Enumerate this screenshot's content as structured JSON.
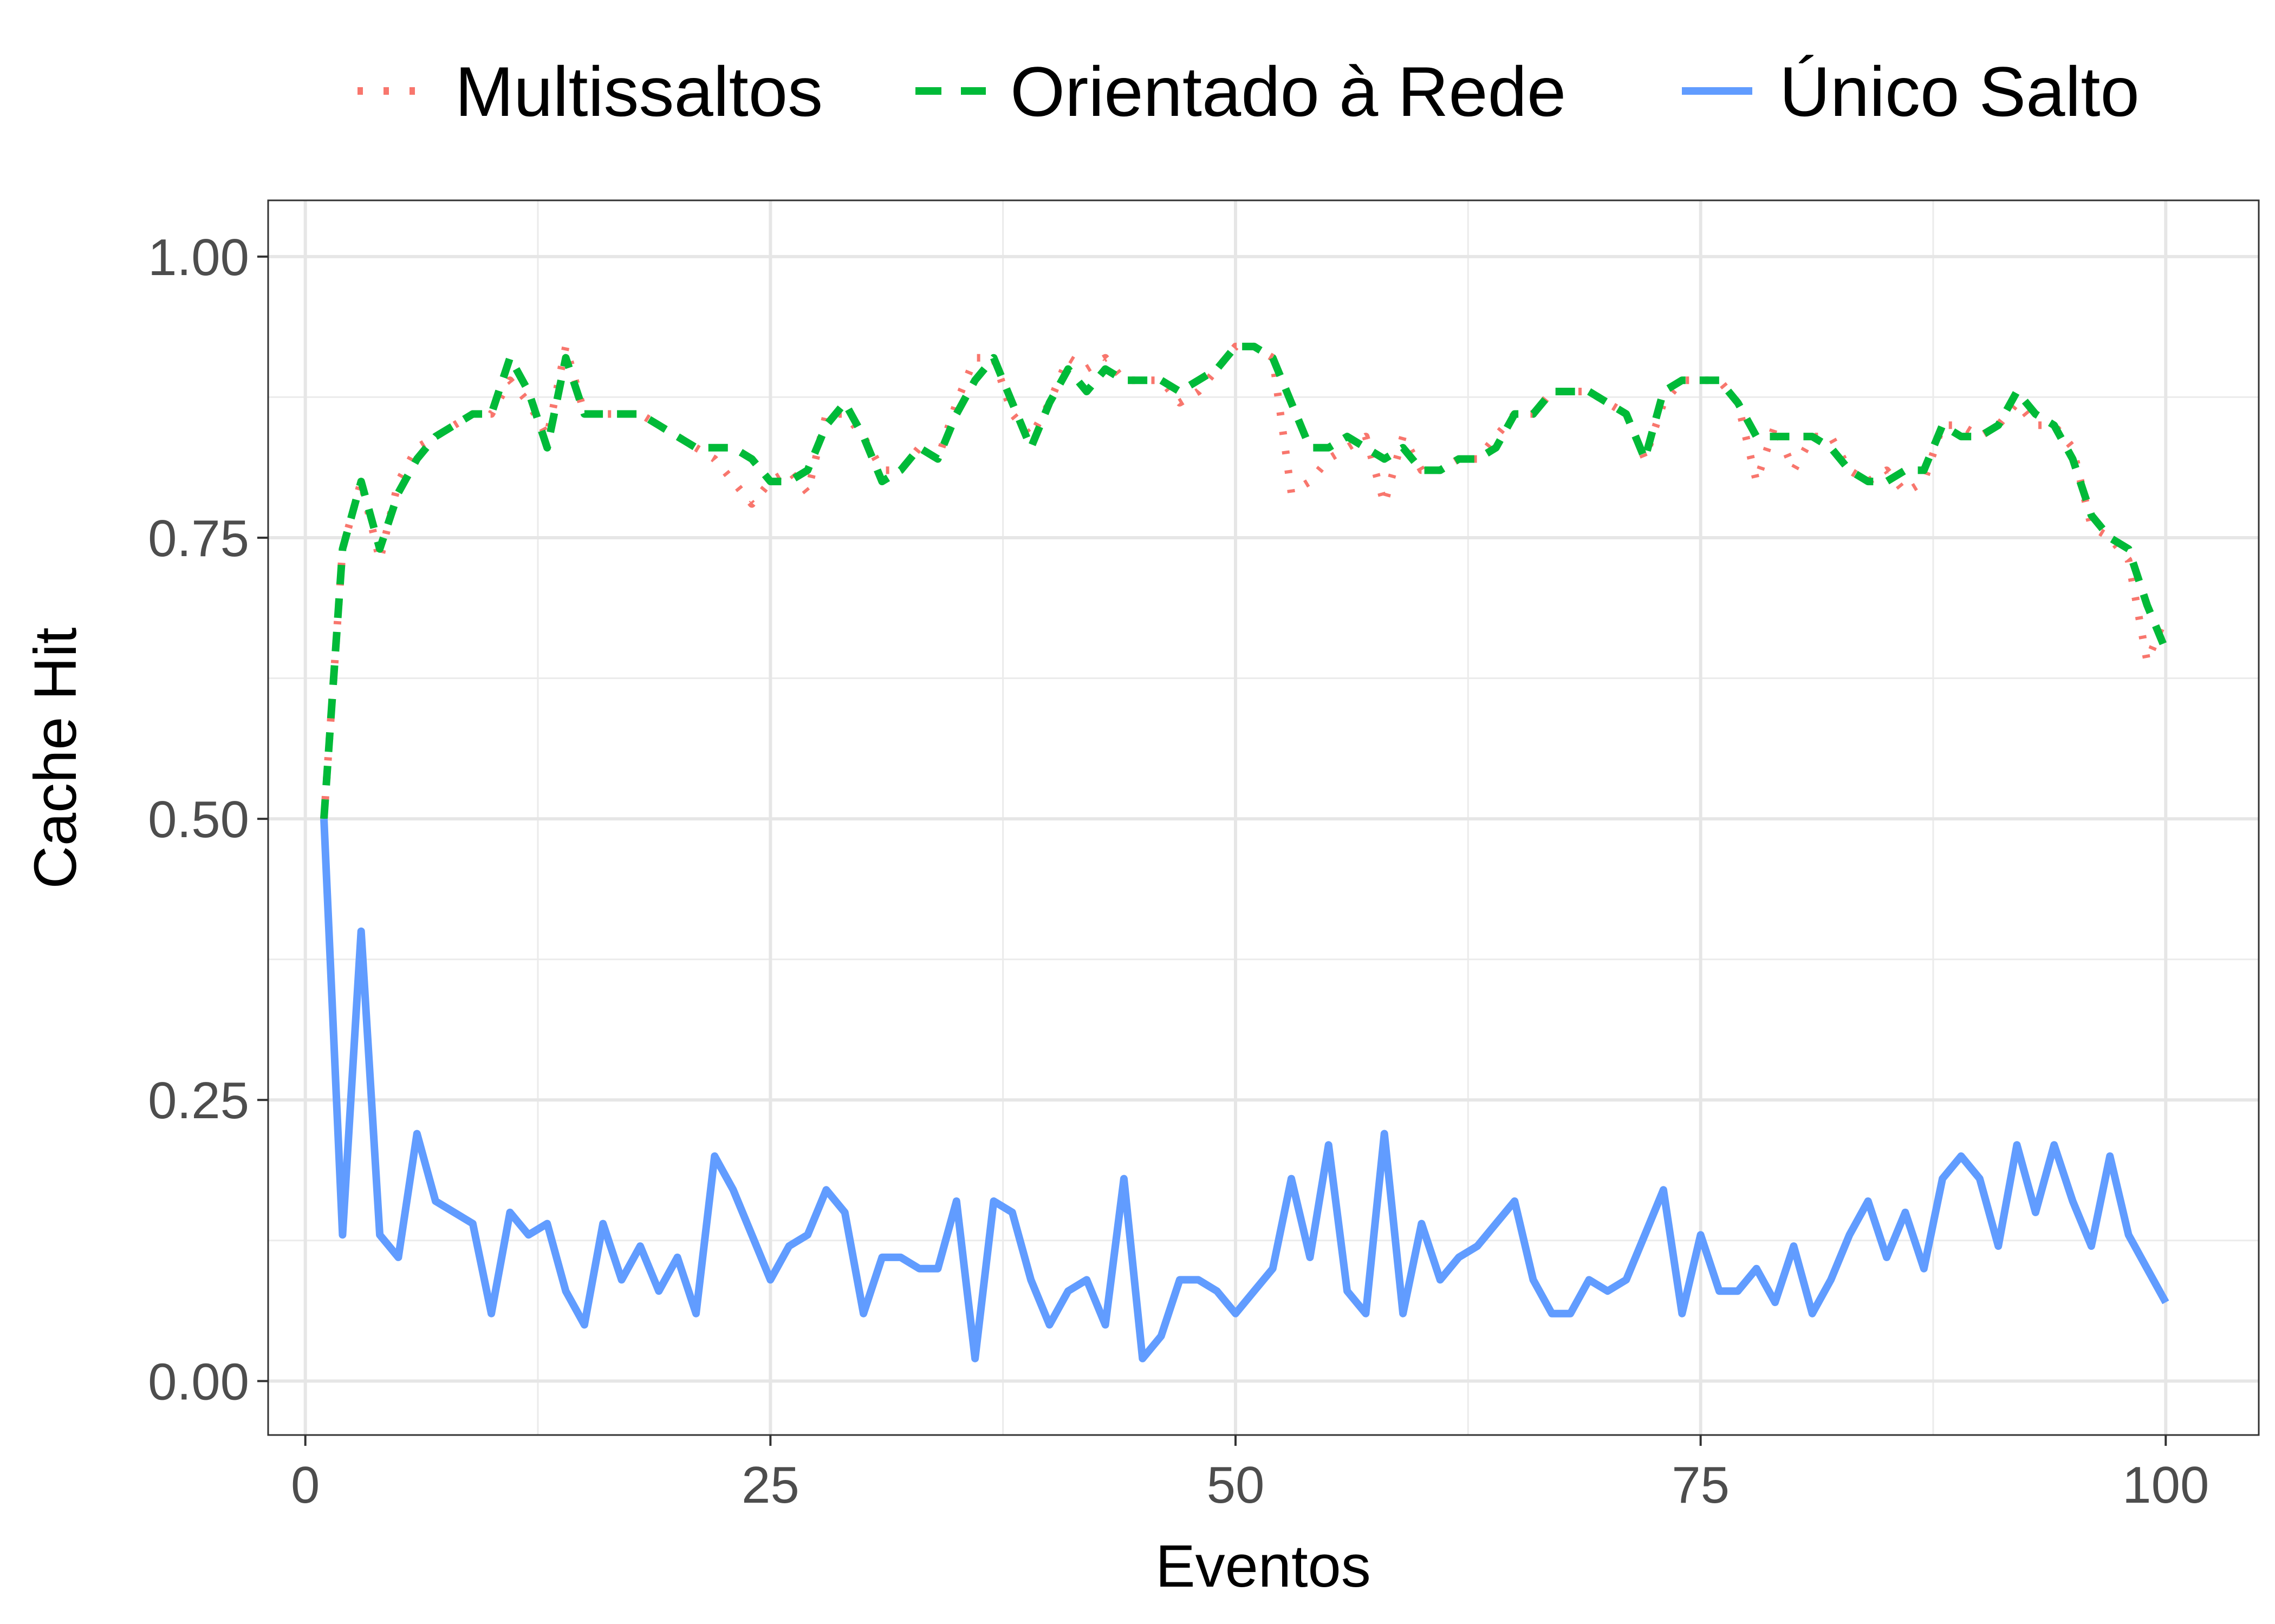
{
  "chart_data": {
    "type": "line",
    "title": "",
    "xlabel": "Eventos",
    "ylabel": "Cache Hit",
    "xlim": [
      -2,
      105
    ],
    "ylim": [
      -0.048,
      1.05
    ],
    "x_ticks": [
      0,
      25,
      50,
      75,
      100
    ],
    "x_tick_labels": [
      "0",
      "25",
      "50",
      "75",
      "100"
    ],
    "x_minor_ticks": [
      12.5,
      37.5,
      62.5,
      87.5
    ],
    "y_ticks": [
      0,
      0.25,
      0.5,
      0.75,
      1
    ],
    "y_tick_labels": [
      "0.00",
      "0.25",
      "0.50",
      "0.75",
      "1.00"
    ],
    "y_minor_ticks": [
      0.125,
      0.375,
      0.625,
      0.875
    ],
    "grid": true,
    "legend_position": "top",
    "x": [
      1,
      2,
      3,
      4,
      5,
      6,
      7,
      8,
      9,
      10,
      11,
      12,
      13,
      14,
      15,
      16,
      17,
      18,
      19,
      20,
      21,
      22,
      23,
      24,
      25,
      26,
      27,
      28,
      29,
      30,
      31,
      32,
      33,
      34,
      35,
      36,
      37,
      38,
      39,
      40,
      41,
      42,
      43,
      44,
      45,
      46,
      47,
      48,
      49,
      50,
      51,
      52,
      53,
      54,
      55,
      56,
      57,
      58,
      59,
      60,
      61,
      62,
      63,
      64,
      65,
      66,
      67,
      68,
      69,
      70,
      71,
      72,
      73,
      74,
      75,
      76,
      77,
      78,
      79,
      80,
      81,
      82,
      83,
      84,
      85,
      86,
      87,
      88,
      89,
      90,
      91,
      92,
      93,
      94,
      95,
      96,
      97,
      98,
      99,
      100
    ],
    "series": [
      {
        "name": "Multissaltos",
        "color": "#F8766D",
        "dash": "dotted",
        "values": [
          0.5,
          0.74,
          0.8,
          0.73,
          0.8,
          0.83,
          0.84,
          0.85,
          0.86,
          0.86,
          0.89,
          0.87,
          0.84,
          0.92,
          0.86,
          0.86,
          0.86,
          0.86,
          0.85,
          0.84,
          0.83,
          0.82,
          0.8,
          0.78,
          0.8,
          0.81,
          0.79,
          0.86,
          0.86,
          0.84,
          0.81,
          0.81,
          0.83,
          0.82,
          0.87,
          0.91,
          0.91,
          0.86,
          0.84,
          0.87,
          0.91,
          0.9,
          0.91,
          0.89,
          0.89,
          0.89,
          0.87,
          0.88,
          0.9,
          0.92,
          0.92,
          0.91,
          0.79,
          0.8,
          0.82,
          0.83,
          0.84,
          0.78,
          0.84,
          0.81,
          0.81,
          0.82,
          0.82,
          0.84,
          0.86,
          0.86,
          0.88,
          0.88,
          0.88,
          0.87,
          0.86,
          0.82,
          0.87,
          0.89,
          0.89,
          0.89,
          0.87,
          0.8,
          0.85,
          0.81,
          0.84,
          0.84,
          0.81,
          0.8,
          0.81,
          0.79,
          0.8,
          0.85,
          0.85,
          0.84,
          0.85,
          0.87,
          0.85,
          0.85,
          0.83,
          0.76,
          0.75,
          0.73,
          0.64,
          0.68
        ]
      },
      {
        "name": "Orientado à Rede",
        "color": "#00BA38",
        "dash": "dashed",
        "values": [
          0.5,
          0.74,
          0.8,
          0.74,
          0.79,
          0.82,
          0.84,
          0.85,
          0.86,
          0.86,
          0.91,
          0.88,
          0.83,
          0.91,
          0.86,
          0.86,
          0.86,
          0.86,
          0.85,
          0.84,
          0.83,
          0.83,
          0.83,
          0.82,
          0.8,
          0.8,
          0.81,
          0.85,
          0.87,
          0.84,
          0.8,
          0.81,
          0.83,
          0.82,
          0.86,
          0.89,
          0.91,
          0.87,
          0.83,
          0.87,
          0.9,
          0.88,
          0.9,
          0.89,
          0.89,
          0.89,
          0.88,
          0.89,
          0.9,
          0.92,
          0.92,
          0.91,
          0.87,
          0.83,
          0.83,
          0.84,
          0.83,
          0.82,
          0.83,
          0.81,
          0.81,
          0.82,
          0.82,
          0.83,
          0.86,
          0.86,
          0.88,
          0.88,
          0.88,
          0.87,
          0.86,
          0.82,
          0.88,
          0.89,
          0.89,
          0.89,
          0.87,
          0.84,
          0.84,
          0.84,
          0.84,
          0.83,
          0.81,
          0.8,
          0.8,
          0.81,
          0.81,
          0.85,
          0.84,
          0.84,
          0.85,
          0.88,
          0.86,
          0.85,
          0.82,
          0.77,
          0.75,
          0.74,
          0.69,
          0.65
        ]
      },
      {
        "name": "Único Salto",
        "color": "#619CFF",
        "dash": "solid",
        "values": [
          0.5,
          0.13,
          0.4,
          0.13,
          0.11,
          0.22,
          0.16,
          0.15,
          0.14,
          0.06,
          0.15,
          0.13,
          0.14,
          0.08,
          0.05,
          0.14,
          0.09,
          0.12,
          0.08,
          0.11,
          0.06,
          0.2,
          0.17,
          0.13,
          0.09,
          0.12,
          0.13,
          0.17,
          0.15,
          0.06,
          0.11,
          0.11,
          0.1,
          0.1,
          0.16,
          0.02,
          0.16,
          0.15,
          0.09,
          0.05,
          0.08,
          0.09,
          0.05,
          0.18,
          0.02,
          0.04,
          0.09,
          0.09,
          0.08,
          0.06,
          0.08,
          0.1,
          0.18,
          0.11,
          0.21,
          0.08,
          0.06,
          0.22,
          0.06,
          0.14,
          0.09,
          0.11,
          0.12,
          0.14,
          0.16,
          0.09,
          0.06,
          0.06,
          0.09,
          0.08,
          0.09,
          0.13,
          0.17,
          0.06,
          0.13,
          0.08,
          0.08,
          0.1,
          0.07,
          0.12,
          0.06,
          0.09,
          0.13,
          0.16,
          0.11,
          0.15,
          0.1,
          0.18,
          0.2,
          0.18,
          0.12,
          0.21,
          0.15,
          0.21,
          0.16,
          0.12,
          0.2,
          0.13,
          0.1,
          0.07
        ]
      }
    ]
  }
}
